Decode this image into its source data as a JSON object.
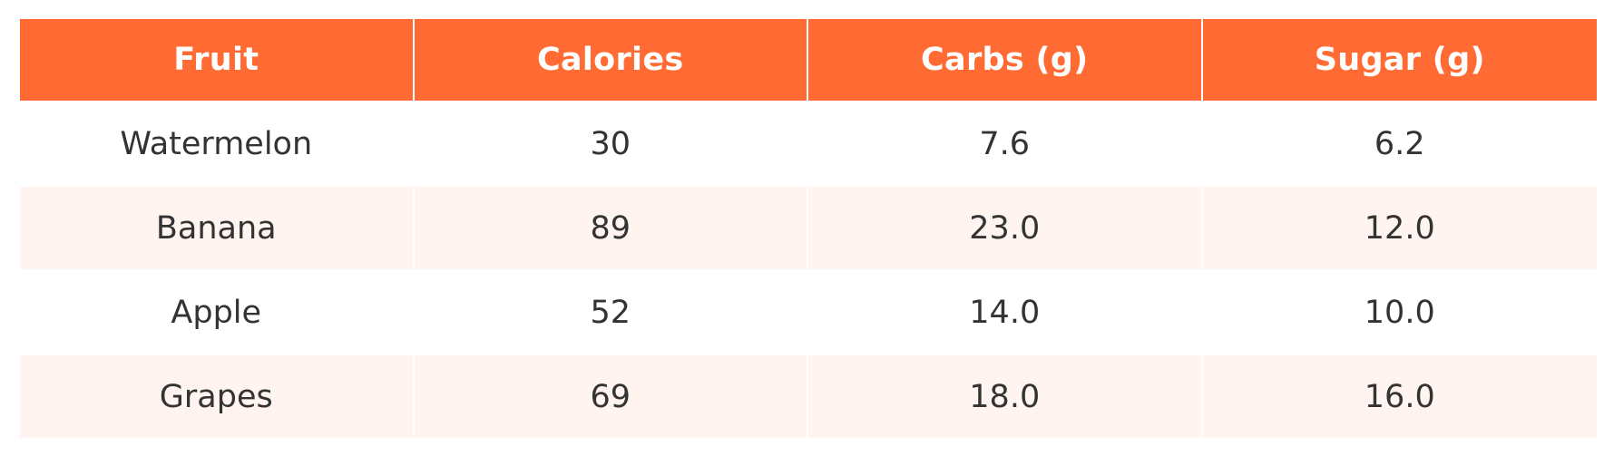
{
  "chart_data": {
    "type": "table",
    "columns": [
      "Fruit",
      "Calories",
      "Carbs (g)",
      "Sugar (g)"
    ],
    "rows": [
      [
        "Watermelon",
        "30",
        "7.6",
        "6.2"
      ],
      [
        "Banana",
        "89",
        "23.0",
        "12.0"
      ],
      [
        "Apple",
        "52",
        "14.0",
        "10.0"
      ],
      [
        "Grapes",
        "69",
        "18.0",
        "16.0"
      ]
    ]
  },
  "colors": {
    "header_background": "#ff6b33",
    "header_text": "#ffffff",
    "row_alt_background": "#fff4ef",
    "row_background": "#ffffff",
    "body_text": "#333333"
  }
}
